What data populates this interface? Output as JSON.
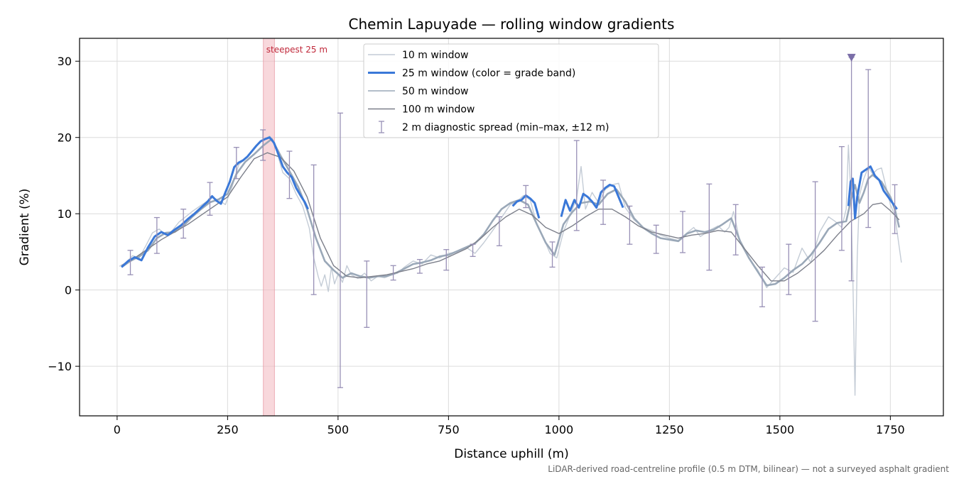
{
  "chart_data": {
    "type": "line",
    "title": "Chemin Lapuyade — rolling window gradients",
    "xlabel": "Distance uphill (m)",
    "ylabel": "Gradient (%)",
    "xlim": [
      -85,
      1870
    ],
    "ylim": [
      -16.5,
      33
    ],
    "x_ticks": [
      0,
      250,
      500,
      750,
      1000,
      1250,
      1500,
      1750
    ],
    "x_tick_labels": [
      "0",
      "250",
      "500",
      "750",
      "1000",
      "1250",
      "1500",
      "1750"
    ],
    "y_ticks": [
      -10,
      0,
      10,
      20,
      30
    ],
    "y_tick_labels": [
      "−10",
      "0",
      "10",
      "20",
      "30"
    ],
    "grid": true,
    "legend_position": "top-center",
    "colors": {
      "w10": "#c4ccd6",
      "w25": "#3a78d8",
      "w50": "#9aa8b8",
      "w100": "#7c7f8a",
      "spread": "#9890b6",
      "steepest": "#f2b8bf",
      "marker": "#7a6ea8"
    },
    "steepest": {
      "label": "steepest 25 m",
      "x_start": 331,
      "x_end": 356
    },
    "marker": {
      "x": 1662,
      "y": 30.5
    },
    "note": "LiDAR-derived road-centreline profile (0.5 m DTM, bilinear) — not a surveyed asphalt gradient",
    "series": [
      {
        "name": "10 m window",
        "x": [
          5,
          20,
          35,
          50,
          65,
          80,
          95,
          110,
          125,
          140,
          155,
          170,
          185,
          200,
          215,
          230,
          245,
          260,
          275,
          290,
          305,
          320,
          335,
          345,
          355,
          365,
          375,
          390,
          405,
          420,
          435,
          445,
          455,
          462,
          470,
          478,
          485,
          492,
          500,
          510,
          520,
          530,
          545,
          560,
          575,
          590,
          605,
          620,
          635,
          650,
          670,
          690,
          710,
          730,
          750,
          770,
          790,
          810,
          830,
          850,
          870,
          890,
          905,
          920,
          935,
          950,
          965,
          980,
          995,
          1010,
          1025,
          1040,
          1050,
          1060,
          1075,
          1090,
          1105,
          1120,
          1135,
          1150,
          1170,
          1190,
          1210,
          1230,
          1250,
          1270,
          1290,
          1305,
          1320,
          1340,
          1360,
          1375,
          1385,
          1395,
          1410,
          1430,
          1450,
          1470,
          1490,
          1510,
          1530,
          1550,
          1570,
          1590,
          1610,
          1625,
          1640,
          1650,
          1655,
          1660,
          1665,
          1670,
          1675,
          1680,
          1690,
          1700,
          1710,
          1720,
          1730,
          1740,
          1750,
          1760,
          1775
        ],
        "y": [
          3.1,
          3.6,
          4.5,
          4.2,
          5.8,
          7.5,
          8.0,
          7.2,
          7.8,
          8.9,
          9.6,
          10.3,
          10.9,
          11.5,
          12.1,
          11.8,
          11.2,
          13.5,
          16.4,
          17.2,
          18.1,
          19.3,
          19.8,
          20.2,
          19.5,
          17.4,
          15.4,
          14.6,
          12.6,
          11.0,
          8.1,
          4.2,
          1.8,
          0.5,
          2.0,
          -0.2,
          3.0,
          0.8,
          2.1,
          1.0,
          3.2,
          2.0,
          1.5,
          2.2,
          1.2,
          1.8,
          1.6,
          2.0,
          2.2,
          3.0,
          3.8,
          3.4,
          4.6,
          4.2,
          4.8,
          5.0,
          5.6,
          4.8,
          6.2,
          7.8,
          9.5,
          11.2,
          11.6,
          12.4,
          11.8,
          8.6,
          6.8,
          4.8,
          4.2,
          7.6,
          9.8,
          12.0,
          16.2,
          10.6,
          12.8,
          11.4,
          13.2,
          13.8,
          14.0,
          10.8,
          9.2,
          8.2,
          7.8,
          7.2,
          6.8,
          6.5,
          7.5,
          8.2,
          7.0,
          7.8,
          8.4,
          7.6,
          8.2,
          10.3,
          6.2,
          4.1,
          2.6,
          0.3,
          1.6,
          2.9,
          2.3,
          5.5,
          3.6,
          7.6,
          9.6,
          9.0,
          8.2,
          10.6,
          19.0,
          13.2,
          2.0,
          -13.8,
          4.2,
          12.4,
          14.6,
          16.1,
          15.2,
          15.8,
          16.0,
          13.6,
          11.2,
          9.8,
          3.6
        ]
      },
      {
        "name": "25 m window (color = grade band)",
        "x": [
          10,
          25,
          40,
          55,
          70,
          85,
          100,
          115,
          130,
          145,
          160,
          175,
          190,
          205,
          215,
          225,
          235,
          245,
          255,
          265,
          275,
          285,
          295,
          305,
          315,
          325,
          335,
          345,
          355,
          365,
          375,
          385,
          395,
          405,
          415,
          425,
          432,
          895,
          905,
          915,
          925,
          935,
          945,
          955,
          1005,
          1015,
          1025,
          1035,
          1045,
          1055,
          1065,
          1075,
          1085,
          1095,
          1105,
          1115,
          1125,
          1135,
          1145,
          1655,
          1660,
          1665,
          1670,
          1675,
          1685,
          1695,
          1705,
          1715,
          1725,
          1735,
          1745,
          1755,
          1765
        ],
        "y": [
          3.0,
          3.8,
          4.3,
          3.9,
          5.6,
          7.0,
          7.6,
          7.2,
          7.9,
          8.5,
          9.3,
          10.0,
          10.8,
          11.6,
          12.3,
          11.7,
          11.3,
          12.8,
          14.2,
          16.1,
          16.7,
          17.0,
          17.5,
          18.2,
          18.9,
          19.5,
          19.8,
          20.0,
          19.3,
          17.8,
          16.2,
          15.4,
          14.8,
          13.4,
          12.4,
          11.5,
          10.6,
          11.0,
          11.6,
          11.8,
          12.4,
          12.0,
          11.4,
          9.4,
          9.6,
          11.8,
          10.4,
          11.8,
          10.8,
          12.6,
          12.2,
          11.6,
          10.8,
          12.8,
          13.4,
          13.8,
          13.6,
          12.2,
          10.8,
          11.0,
          14.2,
          14.6,
          9.4,
          12.2,
          15.4,
          15.8,
          16.2,
          15.0,
          14.4,
          13.0,
          12.2,
          11.4,
          10.6
        ]
      },
      {
        "name": "50 m window",
        "x": [
          10,
          30,
          50,
          70,
          90,
          110,
          130,
          150,
          170,
          190,
          210,
          230,
          250,
          270,
          290,
          310,
          330,
          350,
          370,
          390,
          410,
          430,
          450,
          470,
          490,
          510,
          530,
          550,
          570,
          590,
          610,
          630,
          650,
          670,
          690,
          710,
          730,
          750,
          770,
          790,
          810,
          830,
          850,
          870,
          890,
          910,
          930,
          950,
          970,
          990,
          1010,
          1030,
          1050,
          1070,
          1090,
          1110,
          1130,
          1150,
          1170,
          1190,
          1210,
          1230,
          1250,
          1270,
          1290,
          1310,
          1330,
          1350,
          1370,
          1390,
          1410,
          1430,
          1450,
          1470,
          1490,
          1510,
          1530,
          1550,
          1570,
          1590,
          1610,
          1630,
          1650,
          1660,
          1670,
          1680,
          1690,
          1700,
          1710,
          1720,
          1730,
          1740,
          1750,
          1760,
          1770
        ],
        "y": [
          3.0,
          3.8,
          4.4,
          5.2,
          6.8,
          7.5,
          7.6,
          8.4,
          9.6,
          10.6,
          11.5,
          11.9,
          12.6,
          15.2,
          16.8,
          17.8,
          18.9,
          19.8,
          17.6,
          15.6,
          13.5,
          10.6,
          6.8,
          3.8,
          2.6,
          1.6,
          2.2,
          1.8,
          1.6,
          1.8,
          1.8,
          2.2,
          2.8,
          3.4,
          3.6,
          3.9,
          4.4,
          4.6,
          5.1,
          5.6,
          6.1,
          7.3,
          9.1,
          10.6,
          11.4,
          11.8,
          11.2,
          8.6,
          6.2,
          4.6,
          8.6,
          10.2,
          11.4,
          11.6,
          11.2,
          12.6,
          13.2,
          11.6,
          9.4,
          8.2,
          7.4,
          6.8,
          6.6,
          6.4,
          7.4,
          7.8,
          7.6,
          7.9,
          8.6,
          9.4,
          6.4,
          4.2,
          2.4,
          0.6,
          0.8,
          1.6,
          2.6,
          3.4,
          4.6,
          6.2,
          8.0,
          8.8,
          9.0,
          11.6,
          13.8,
          11.4,
          12.8,
          14.6,
          15.1,
          14.6,
          14.2,
          13.2,
          12.2,
          10.6,
          8.2
        ]
      },
      {
        "name": "100 m window",
        "x": [
          10,
          40,
          70,
          100,
          130,
          160,
          190,
          220,
          250,
          280,
          310,
          340,
          370,
          400,
          430,
          460,
          490,
          520,
          550,
          580,
          610,
          640,
          670,
          700,
          730,
          760,
          790,
          820,
          850,
          880,
          910,
          940,
          970,
          1000,
          1030,
          1060,
          1090,
          1120,
          1150,
          1180,
          1210,
          1240,
          1270,
          1300,
          1330,
          1360,
          1390,
          1420,
          1450,
          1480,
          1510,
          1540,
          1570,
          1600,
          1630,
          1660,
          1690,
          1710,
          1730,
          1750,
          1770
        ],
        "y": [
          3.2,
          4.2,
          5.4,
          6.6,
          7.6,
          8.6,
          9.8,
          11.0,
          12.2,
          14.8,
          17.2,
          18.0,
          17.4,
          15.6,
          12.2,
          6.8,
          3.2,
          1.8,
          1.6,
          1.8,
          2.0,
          2.4,
          2.8,
          3.4,
          3.8,
          4.6,
          5.4,
          6.6,
          8.2,
          9.6,
          10.6,
          9.8,
          8.2,
          7.4,
          8.4,
          9.6,
          10.6,
          10.6,
          9.6,
          8.4,
          7.6,
          7.2,
          6.8,
          7.2,
          7.4,
          7.8,
          7.6,
          5.4,
          3.2,
          1.2,
          1.2,
          2.2,
          3.6,
          5.2,
          7.2,
          9.0,
          10.0,
          11.2,
          11.4,
          10.4,
          9.2
        ]
      }
    ],
    "spread": {
      "name": "2 m diagnostic spread (min–max, ±12 m)",
      "x": [
        30,
        90,
        150,
        210,
        270,
        330,
        390,
        445,
        505,
        565,
        625,
        685,
        745,
        805,
        865,
        925,
        985,
        1040,
        1100,
        1160,
        1220,
        1280,
        1340,
        1400,
        1460,
        1520,
        1580,
        1640,
        1662,
        1700,
        1760
      ],
      "low": [
        2.0,
        4.8,
        6.8,
        9.8,
        14.6,
        17.0,
        12.0,
        -0.6,
        -12.8,
        -4.9,
        1.3,
        2.2,
        2.6,
        4.4,
        5.8,
        10.8,
        3.0,
        7.8,
        8.6,
        6.0,
        4.8,
        4.9,
        2.6,
        4.6,
        -2.2,
        -0.6,
        -4.1,
        5.2,
        1.2,
        8.2,
        7.4
      ],
      "high": [
        5.2,
        9.5,
        10.6,
        14.1,
        18.7,
        21.0,
        18.2,
        16.4,
        23.2,
        3.8,
        3.2,
        4.0,
        5.3,
        6.0,
        9.6,
        13.7,
        6.3,
        19.6,
        14.4,
        11.0,
        8.5,
        10.3,
        13.9,
        11.2,
        3.0,
        6.0,
        14.2,
        18.8,
        30.5,
        28.9,
        13.8
      ]
    }
  }
}
